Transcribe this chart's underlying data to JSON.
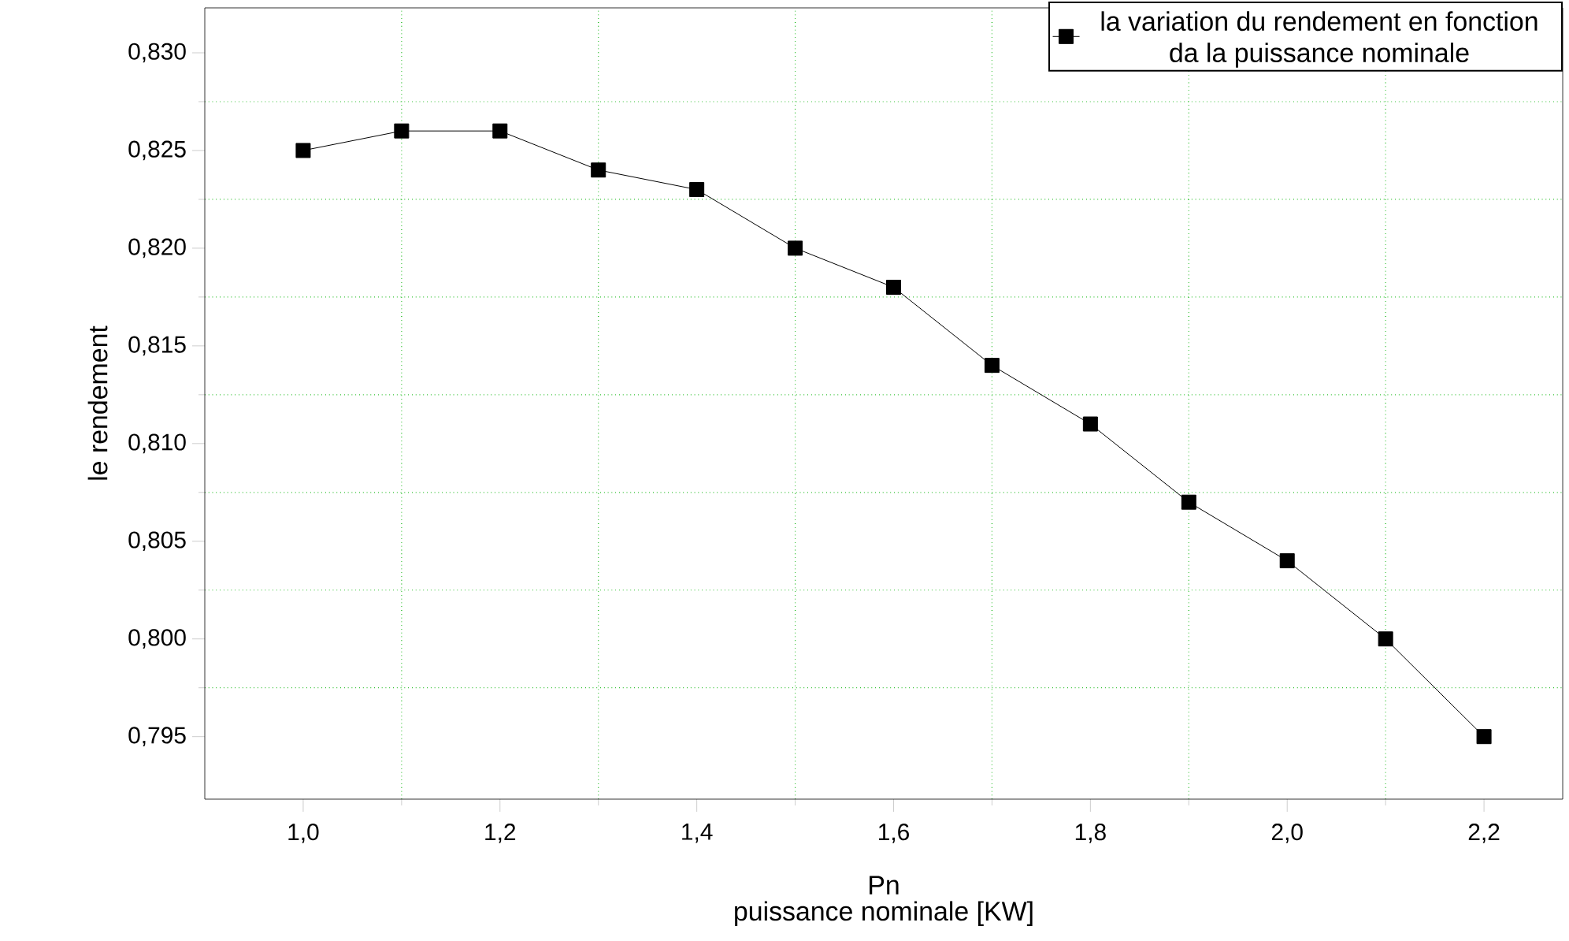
{
  "chart_data": {
    "type": "line",
    "x": [
      1.0,
      1.1,
      1.2,
      1.3,
      1.4,
      1.5,
      1.6,
      1.7,
      1.8,
      1.9,
      2.0,
      2.1,
      2.2
    ],
    "series": [
      {
        "name": "la variation du rendement en fonction da la puissance nominale",
        "color": "#000000",
        "values": [
          0.825,
          0.826,
          0.826,
          0.824,
          0.823,
          0.82,
          0.818,
          0.814,
          0.811,
          0.807,
          0.804,
          0.8,
          0.795
        ]
      }
    ],
    "xlabel": "Pn",
    "ylabel": "le rendement",
    "annotations": [
      "puissance nominale [KW]"
    ],
    "xlim": [
      0.9,
      2.28
    ],
    "ylim": [
      0.7918,
      0.8323
    ],
    "xticks": [
      {
        "value": 1.0,
        "label": "1,0"
      },
      {
        "value": 1.1,
        "label": null
      },
      {
        "value": 1.2,
        "label": "1,2"
      },
      {
        "value": 1.3,
        "label": null
      },
      {
        "value": 1.4,
        "label": "1,4"
      },
      {
        "value": 1.5,
        "label": null
      },
      {
        "value": 1.6,
        "label": "1,6"
      },
      {
        "value": 1.7,
        "label": null
      },
      {
        "value": 1.8,
        "label": "1,8"
      },
      {
        "value": 1.9,
        "label": null
      },
      {
        "value": 2.0,
        "label": "2,0"
      },
      {
        "value": 2.1,
        "label": null
      },
      {
        "value": 2.2,
        "label": "2,2"
      }
    ],
    "yticks": [
      {
        "value": 0.795,
        "label": "0,795"
      },
      {
        "value": 0.7975,
        "label": null
      },
      {
        "value": 0.8,
        "label": "0,800"
      },
      {
        "value": 0.8025,
        "label": null
      },
      {
        "value": 0.805,
        "label": "0,805"
      },
      {
        "value": 0.8075,
        "label": null
      },
      {
        "value": 0.81,
        "label": "0,810"
      },
      {
        "value": 0.8125,
        "label": null
      },
      {
        "value": 0.815,
        "label": "0,815"
      },
      {
        "value": 0.8175,
        "label": null
      },
      {
        "value": 0.82,
        "label": "0,820"
      },
      {
        "value": 0.8225,
        "label": null
      },
      {
        "value": 0.825,
        "label": "0,825"
      },
      {
        "value": 0.8275,
        "label": null
      },
      {
        "value": 0.83,
        "label": "0,830"
      }
    ],
    "grid": true,
    "legend": "top right",
    "marker": "square",
    "line_style": "solid"
  }
}
